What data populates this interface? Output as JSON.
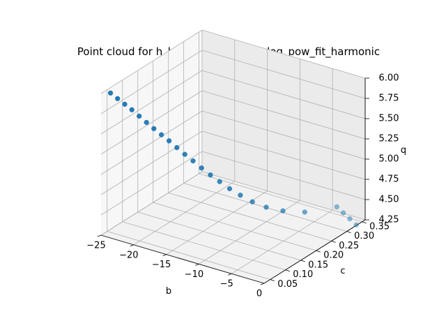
{
  "chart_data": {
    "type": "scatter",
    "projection": "3d",
    "title": "Point cloud for h_hundredth_hp_log_log_pow_fit_harmonic",
    "xlabel": "b",
    "ylabel": "c",
    "zlabel": "q",
    "xlim": [
      -25,
      0
    ],
    "ylim": [
      0.03,
      0.36
    ],
    "zlim": [
      4.25,
      6.0
    ],
    "xticks": [
      -25,
      -20,
      -15,
      -10,
      -5,
      0
    ],
    "yticks": [
      0.05,
      0.1,
      0.15,
      0.2,
      0.25,
      0.3,
      0.35
    ],
    "zticks": [
      4.25,
      4.5,
      4.75,
      5.0,
      5.25,
      5.5,
      5.75,
      6.0
    ],
    "xtick_labels": [
      "−25",
      "−20",
      "−15",
      "−10",
      "−5",
      "0"
    ],
    "ytick_labels": [
      "0.05",
      "0.10",
      "0.15",
      "0.20",
      "0.25",
      "0.30",
      "0.35"
    ],
    "ztick_labels": [
      "4.25",
      "4.50",
      "4.75",
      "5.00",
      "5.25",
      "5.50",
      "5.75",
      "6.00"
    ],
    "grid": true,
    "color": "#1f77b4",
    "points": {
      "b": [
        -24.1,
        -23.1,
        -22.1,
        -21.1,
        -20.1,
        -19.1,
        -18.1,
        -17.1,
        -16.1,
        -15.1,
        -14.1,
        -13.1,
        -12.1,
        -11.1,
        -10.1,
        -9.1,
        -8.1,
        -7.1,
        -6.1,
        -5.1,
        -4.1,
        -3.1,
        -2.1,
        -1.1,
        -0.1
      ],
      "c": [
        0.0417,
        0.0435,
        0.0455,
        0.0476,
        0.05,
        0.0526,
        0.0556,
        0.0588,
        0.0625,
        0.0667,
        0.0714,
        0.0769,
        0.0833,
        0.0909,
        0.1,
        0.1111,
        0.125,
        0.1429,
        0.1667,
        0.2,
        0.25,
        0.3333,
        0.3333,
        0.3333,
        0.3333
      ],
      "q": [
        6.0,
        5.95,
        5.9,
        5.85,
        5.79,
        5.73,
        5.67,
        5.61,
        5.55,
        5.48,
        5.41,
        5.34,
        5.26,
        5.18,
        5.1,
        5.01,
        4.92,
        4.82,
        4.72,
        4.62,
        4.51,
        4.4,
        4.35,
        4.3,
        4.25
      ]
    }
  }
}
